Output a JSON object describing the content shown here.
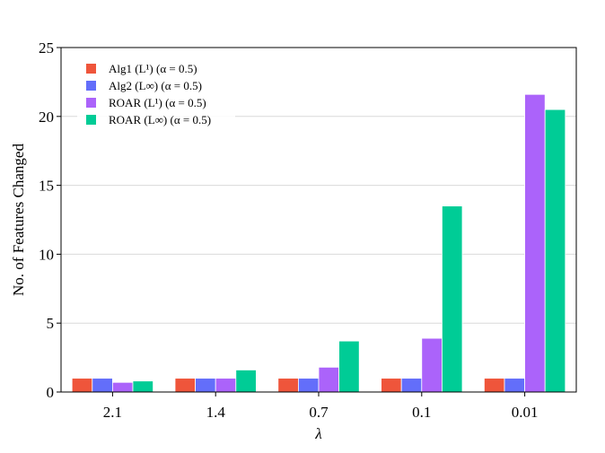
{
  "chart_data": {
    "type": "bar",
    "categories": [
      "2.1",
      "1.4",
      "0.7",
      "0.1",
      "0.01"
    ],
    "series": [
      {
        "name": "Alg1 (L¹) (α = 0.5)",
        "values": [
          1.0,
          1.0,
          1.0,
          1.0,
          1.0
        ],
        "color": "#ef553b"
      },
      {
        "name": "Alg2 (L∞) (α = 0.5)",
        "values": [
          1.0,
          1.0,
          1.0,
          1.0,
          1.0
        ],
        "color": "#636efa"
      },
      {
        "name": "ROAR (L¹) (α = 0.5)",
        "values": [
          0.7,
          1.0,
          1.8,
          3.9,
          21.6
        ],
        "color": "#ab63fa"
      },
      {
        "name": "ROAR (L∞) (α = 0.5)",
        "values": [
          0.8,
          1.6,
          3.7,
          13.5,
          20.5
        ],
        "color": "#00cc96"
      }
    ],
    "xlabel": "λ",
    "ylabel": "No. of Features Changed",
    "ylim": [
      0,
      25
    ],
    "yticks": [
      0,
      5,
      10,
      15,
      20,
      25
    ],
    "grid": true,
    "legend_position": "top-left"
  }
}
